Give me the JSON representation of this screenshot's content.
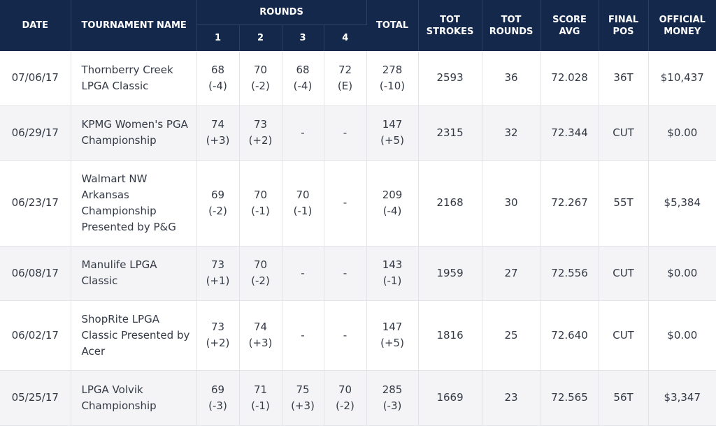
{
  "header": {
    "date": "DATE",
    "tournament": "TOURNAMENT NAME",
    "rounds": "ROUNDS",
    "r1": "1",
    "r2": "2",
    "r3": "3",
    "r4": "4",
    "total": "TOTAL",
    "tot_strokes": [
      "TOT",
      "STROKES"
    ],
    "tot_rounds": [
      "TOT",
      "ROUNDS"
    ],
    "score_avg": [
      "SCORE",
      "AVG"
    ],
    "final_pos": [
      "FINAL",
      "POS"
    ],
    "official_money": [
      "OFFICIAL",
      "MONEY"
    ]
  },
  "rows": [
    {
      "date": "07/06/17",
      "name": [
        "Thornberry Creek",
        "LPGA Classic"
      ],
      "r1": [
        "68",
        "(-4)"
      ],
      "r2": [
        "70",
        "(-2)"
      ],
      "r3": [
        "68",
        "(-4)"
      ],
      "r4": [
        "72",
        "(E)"
      ],
      "total": [
        "278",
        "(-10)"
      ],
      "tot_strokes": "2593",
      "tot_rounds": "36",
      "score_avg": "72.028",
      "final_pos": "36T",
      "money": "$10,437"
    },
    {
      "date": "06/29/17",
      "name": [
        "KPMG Women's PGA",
        "Championship"
      ],
      "r1": [
        "74",
        "(+3)"
      ],
      "r2": [
        "73",
        "(+2)"
      ],
      "r3": [
        "-",
        ""
      ],
      "r4": [
        "-",
        ""
      ],
      "total": [
        "147",
        "(+5)"
      ],
      "tot_strokes": "2315",
      "tot_rounds": "32",
      "score_avg": "72.344",
      "final_pos": "CUT",
      "money": "$0.00"
    },
    {
      "date": "06/23/17",
      "name": [
        "Walmart NW",
        "Arkansas",
        "Championship",
        "Presented by P&G"
      ],
      "r1": [
        "69",
        "(-2)"
      ],
      "r2": [
        "70",
        "(-1)"
      ],
      "r3": [
        "70",
        "(-1)"
      ],
      "r4": [
        "-",
        ""
      ],
      "total": [
        "209",
        "(-4)"
      ],
      "tot_strokes": "2168",
      "tot_rounds": "30",
      "score_avg": "72.267",
      "final_pos": "55T",
      "money": "$5,384"
    },
    {
      "date": "06/08/17",
      "name": [
        "Manulife LPGA",
        "Classic"
      ],
      "r1": [
        "73",
        "(+1)"
      ],
      "r2": [
        "70",
        "(-2)"
      ],
      "r3": [
        "-",
        ""
      ],
      "r4": [
        "-",
        ""
      ],
      "total": [
        "143",
        "(-1)"
      ],
      "tot_strokes": "1959",
      "tot_rounds": "27",
      "score_avg": "72.556",
      "final_pos": "CUT",
      "money": "$0.00"
    },
    {
      "date": "06/02/17",
      "name": [
        "ShopRite LPGA",
        "Classic Presented by",
        "Acer"
      ],
      "r1": [
        "73",
        "(+2)"
      ],
      "r2": [
        "74",
        "(+3)"
      ],
      "r3": [
        "-",
        ""
      ],
      "r4": [
        "-",
        ""
      ],
      "total": [
        "147",
        "(+5)"
      ],
      "tot_strokes": "1816",
      "tot_rounds": "25",
      "score_avg": "72.640",
      "final_pos": "CUT",
      "money": "$0.00"
    },
    {
      "date": "05/25/17",
      "name": [
        "LPGA Volvik",
        "Championship"
      ],
      "r1": [
        "69",
        "(-3)"
      ],
      "r2": [
        "71",
        "(-1)"
      ],
      "r3": [
        "75",
        "(+3)"
      ],
      "r4": [
        "70",
        "(-2)"
      ],
      "total": [
        "285",
        "(-3)"
      ],
      "tot_strokes": "1669",
      "tot_rounds": "23",
      "score_avg": "72.565",
      "final_pos": "56T",
      "money": "$3,347"
    }
  ],
  "colors": {
    "header_bg": "#13284b",
    "header_text": "#ffffff",
    "row_alt_bg": "#f4f4f6",
    "body_text": "#333a46"
  }
}
